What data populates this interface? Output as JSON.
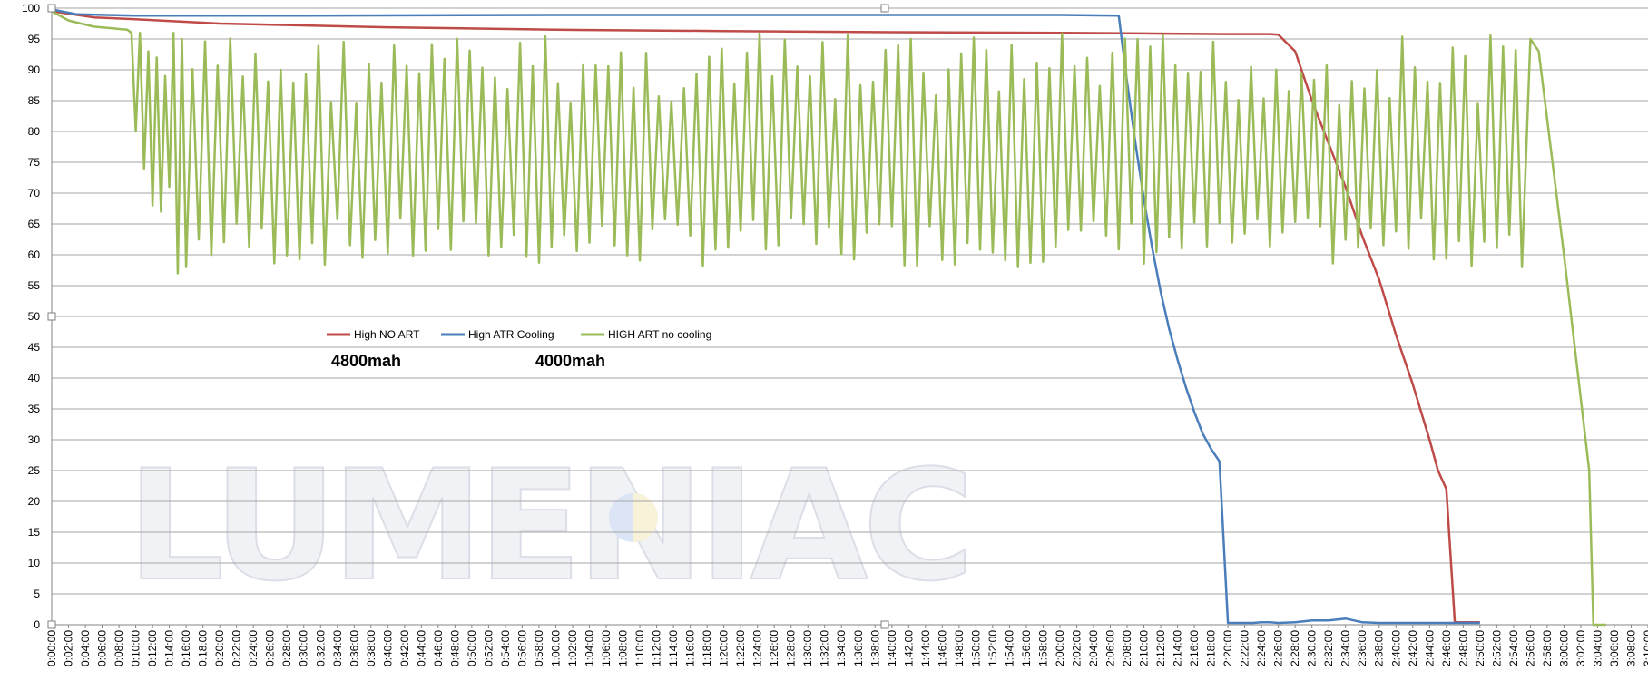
{
  "chart_data": {
    "type": "line",
    "title": "",
    "xlabel": "",
    "ylabel": "",
    "ylim": [
      0,
      100
    ],
    "yticks": [
      0,
      5,
      10,
      15,
      20,
      25,
      30,
      35,
      40,
      45,
      50,
      55,
      60,
      65,
      70,
      75,
      80,
      85,
      90,
      95,
      100
    ],
    "x_range_minutes": [
      0,
      190
    ],
    "xtick_interval_minutes": 2,
    "grid": "horizontal",
    "legend_position": "center-left",
    "series": [
      {
        "name": "High NO ART",
        "color": "#be4b48",
        "x_minutes": [
          0,
          5,
          10,
          20,
          40,
          60,
          80,
          100,
          120,
          130,
          140,
          145,
          146,
          148,
          150,
          152,
          154,
          156,
          158,
          160,
          162,
          164,
          165,
          166,
          167,
          170
        ],
        "values": [
          99.5,
          98.5,
          98.2,
          97.5,
          96.9,
          96.5,
          96.3,
          96.1,
          96.0,
          95.9,
          95.8,
          95.8,
          95.7,
          93,
          85,
          78,
          71,
          63,
          56,
          47,
          39,
          30,
          25,
          22,
          0.4,
          0.4
        ]
      },
      {
        "name": "High ATR Cooling",
        "color": "#4a7ebb",
        "x_minutes": [
          0,
          3,
          10,
          30,
          60,
          90,
          120,
          127,
          128,
          129,
          130,
          131,
          132,
          133,
          134,
          135,
          136,
          137,
          138,
          139,
          140,
          141,
          142,
          143,
          144,
          145,
          146,
          148,
          150,
          152,
          154,
          156,
          158,
          160,
          162,
          164,
          166,
          168,
          170
        ],
        "values": [
          99.8,
          99.0,
          98.8,
          98.8,
          98.9,
          98.9,
          98.9,
          98.8,
          88,
          78,
          69,
          61,
          54,
          48,
          43,
          38.5,
          34.5,
          31,
          28.5,
          26.5,
          0.3,
          0.3,
          0.3,
          0.3,
          0.4,
          0.4,
          0.3,
          0.4,
          0.7,
          0.7,
          1.0,
          0.4,
          0.3,
          0.3,
          0.3,
          0.3,
          0.3,
          0.3,
          0.3
        ]
      },
      {
        "name": "HIGH ART no cooling",
        "color": "#9bbb59",
        "x_minutes": [
          0,
          2,
          5,
          9,
          9.5,
          10,
          10.5,
          11,
          11.5,
          12,
          12.5,
          13,
          13.5,
          14,
          14.5,
          15,
          15.5,
          16,
          175,
          176,
          177,
          180,
          183,
          183.5,
          184,
          185
        ],
        "values": [
          99.5,
          98,
          97,
          96.5,
          96,
          80,
          96,
          74,
          93,
          68,
          92,
          67,
          89,
          71,
          96,
          57,
          95,
          58,
          58,
          95,
          93,
          60,
          25,
          0,
          0,
          0
        ],
        "oscillation": {
          "x_minutes_from": 16,
          "x_minutes_to": 175,
          "high": 96,
          "low": 58
        }
      }
    ]
  },
  "annotations": {
    "left_capacity": "4800mah",
    "right_capacity": "4000mah"
  },
  "watermark": {
    "text": "LUMENIAC"
  }
}
